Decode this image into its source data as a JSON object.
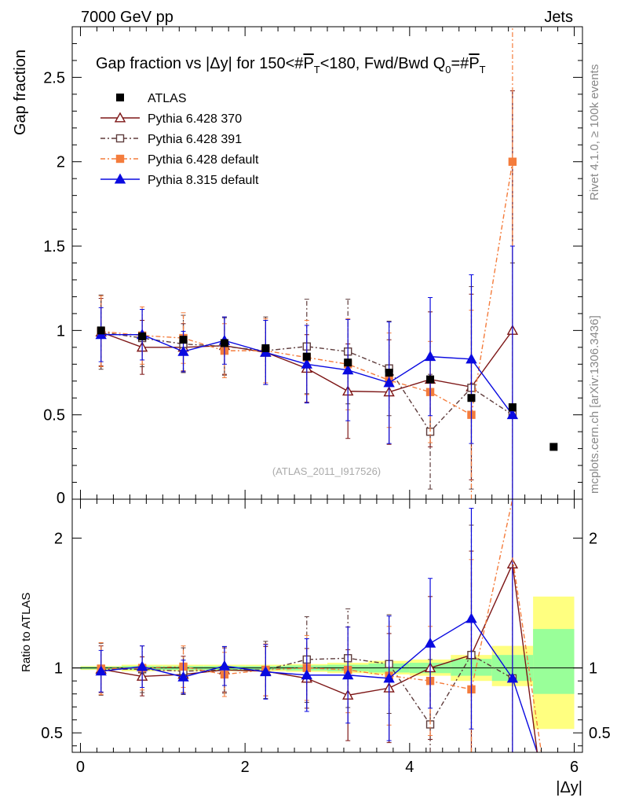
{
  "header": {
    "left": "7000 GeV pp",
    "right": "Jets",
    "side_rivet": "Rivet 4.1.0, ≥ 100k events",
    "side_mcplots": "mcplots.cern.ch [arXiv:1306.3436]",
    "watermark": "(ATLAS_2011_I917526)"
  },
  "chart_data": {
    "type": "scatter",
    "title": "Gap fraction vs |Δy| for 150<#P̅T<180, Fwd/Bwd Q0=#P̅T",
    "title_parts": {
      "main": "Gap fraction vs |Δy| for 150<#",
      "pt": "P",
      "t": "T",
      "mid": "<180, Fwd/Bwd Q",
      "zero": "0",
      "eq": "=#",
      "pt2": "P",
      "t2": "T"
    },
    "xlabel": "|Δy|",
    "ylabel": "Gap fraction",
    "ratio_ylabel": "Ratio to ATLAS",
    "xlim": [
      -0.1,
      6.1
    ],
    "ylim": [
      0,
      2.8
    ],
    "ratio_ylim": [
      0.35,
      2.3
    ],
    "x_ticks": [
      "0",
      "2",
      "4",
      "6"
    ],
    "y_ticks": [
      "0.5",
      "1",
      "1.5",
      "2",
      "2.5"
    ],
    "y_tick_zero": "0",
    "ratio_ticks": [
      "0.5",
      "1",
      "2"
    ],
    "x": [
      0.25,
      0.75,
      1.25,
      1.75,
      2.25,
      2.75,
      3.25,
      3.75,
      4.25,
      4.75,
      5.25,
      5.75
    ],
    "data": {
      "name": "ATLAS",
      "values": [
        1.0,
        0.965,
        0.945,
        0.925,
        0.895,
        0.845,
        0.81,
        0.75,
        0.71,
        0.6,
        0.545,
        0.31
      ]
    },
    "band": {
      "x_edges": [
        [
          0,
          0.5
        ],
        [
          0.5,
          1.0
        ],
        [
          1.0,
          1.5
        ],
        [
          1.5,
          2.0
        ],
        [
          2.0,
          2.5
        ],
        [
          2.5,
          3.0
        ],
        [
          3.0,
          3.5
        ],
        [
          3.5,
          4.0
        ],
        [
          4.0,
          4.5
        ],
        [
          4.5,
          5.0
        ],
        [
          5.0,
          5.5
        ],
        [
          5.5,
          6.0
        ]
      ],
      "green": [
        [
          0.99,
          1.01
        ],
        [
          0.985,
          1.015
        ],
        [
          0.985,
          1.015
        ],
        [
          0.985,
          1.015
        ],
        [
          0.985,
          1.015
        ],
        [
          0.98,
          1.02
        ],
        [
          0.975,
          1.025
        ],
        [
          0.965,
          1.035
        ],
        [
          0.96,
          1.04
        ],
        [
          0.94,
          1.07
        ],
        [
          0.9,
          1.1
        ],
        [
          0.8,
          1.3
        ]
      ],
      "yellow": [
        [
          0.985,
          1.015
        ],
        [
          0.975,
          1.025
        ],
        [
          0.975,
          1.025
        ],
        [
          0.975,
          1.025
        ],
        [
          0.975,
          1.025
        ],
        [
          0.97,
          1.03
        ],
        [
          0.96,
          1.04
        ],
        [
          0.95,
          1.055
        ],
        [
          0.94,
          1.065
        ],
        [
          0.9,
          1.1
        ],
        [
          0.86,
          1.17
        ],
        [
          0.53,
          1.55
        ]
      ]
    },
    "series": [
      {
        "name": "Pythia 6.428 370",
        "color": "#7d1616",
        "marker": "triangle-open",
        "dash": "",
        "values": [
          0.99,
          0.9,
          0.9,
          0.91,
          0.87,
          0.775,
          0.64,
          0.635,
          0.71,
          0.665,
          1.0
        ],
        "errors": [
          0.2,
          0.16,
          0.14,
          0.17,
          0.19,
          0.2,
          0.28,
          0.31,
          0.4,
          0.55,
          1.42
        ],
        "ratio": [
          0.99,
          0.935,
          0.95,
          0.985,
          0.975,
          0.92,
          0.79,
          0.845,
          1.0,
          1.1,
          1.8
        ],
        "ratio_err": [
          0.18,
          0.15,
          0.14,
          0.17,
          0.19,
          0.23,
          0.35,
          0.42,
          0.55,
          0.8,
          2.5
        ]
      },
      {
        "name": "Pythia 6.428 391",
        "color": "#5e3c3c",
        "marker": "square-open",
        "dash": "6,3,2,3",
        "values": [
          0.99,
          0.955,
          0.92,
          0.905,
          0.88,
          0.905,
          0.875,
          0.775,
          0.4,
          0.66,
          0.5
        ],
        "errors": [
          0.22,
          0.17,
          0.17,
          0.17,
          0.2,
          0.28,
          0.31,
          0.28,
          0.34,
          0.6,
          0.9
        ],
        "ratio": [
          0.99,
          0.99,
          0.975,
          0.985,
          0.985,
          1.065,
          1.075,
          1.03,
          0.565,
          1.1,
          0.92
        ],
        "ratio_err": [
          0.2,
          0.18,
          0.18,
          0.18,
          0.22,
          0.33,
          0.38,
          0.38,
          0.5,
          1.0,
          1.6
        ]
      },
      {
        "name": "Pythia 6.428 default",
        "color": "#f47c3c",
        "marker": "square-filled",
        "dash": "6,3,2,3",
        "values": [
          0.995,
          0.97,
          0.955,
          0.88,
          0.88,
          0.84,
          0.8,
          0.705,
          0.635,
          0.5,
          2.0
        ],
        "errors": [
          0.21,
          0.17,
          0.15,
          0.16,
          0.19,
          0.22,
          0.27,
          0.28,
          0.3,
          0.62,
          2.2
        ],
        "ratio": [
          0.995,
          1.0,
          1.01,
          0.95,
          0.985,
          1.0,
          0.985,
          0.94,
          0.9,
          0.835,
          3.2
        ],
        "ratio_err": [
          0.2,
          0.17,
          0.16,
          0.17,
          0.2,
          0.25,
          0.33,
          0.38,
          0.42,
          1.0,
          3.5
        ]
      },
      {
        "name": "Pythia 8.315 default",
        "color": "#0a0ae0",
        "marker": "triangle-filled",
        "dash": "",
        "values": [
          0.975,
          0.975,
          0.875,
          0.94,
          0.87,
          0.8,
          0.765,
          0.69,
          0.845,
          0.83,
          0.5
        ],
        "errors": [
          0.16,
          0.15,
          0.12,
          0.14,
          0.19,
          0.23,
          0.3,
          0.36,
          0.35,
          0.5,
          1.0
        ],
        "ratio": [
          0.975,
          1.01,
          0.93,
          1.015,
          0.97,
          0.945,
          0.945,
          0.92,
          1.19,
          1.38,
          0.92
        ],
        "ratio_err": [
          0.16,
          0.16,
          0.13,
          0.15,
          0.21,
          0.28,
          0.37,
          0.48,
          0.5,
          0.85,
          1.9
        ]
      }
    ],
    "tail_line": {
      "color": "#0a0ae0",
      "from": [
        5.25,
        0.92
      ],
      "to": [
        5.55,
        0.2
      ]
    }
  }
}
